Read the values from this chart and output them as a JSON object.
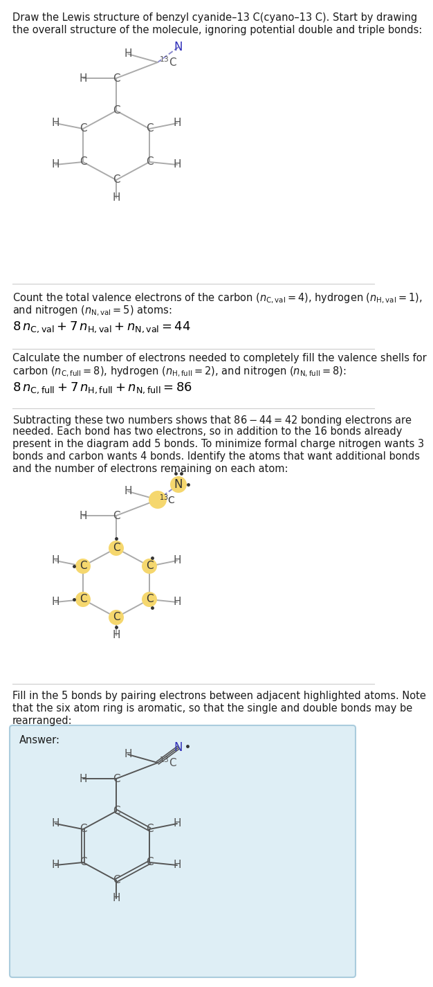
{
  "bg_color": "#ffffff",
  "answer_bg": "#deeef5",
  "answer_border": "#aaccdd",
  "atom_highlight": "#f5d76e",
  "bond_color": "#aaaaaa",
  "bond_color2": "#888888",
  "N_color": "#3333bb",
  "text_color": "#1a1a1a",
  "sep_color": "#cccccc",
  "sections": {
    "title_lines": [
      "Draw the Lewis structure of benzyl cyanide–13 C(cyano–13 C). Start by drawing",
      "the overall structure of the molecule, ignoring potential double and triple bonds:"
    ],
    "s1_lines": [
      "Count the total valence electrons of the carbon ($n_{\\mathrm{C,val}}=4$), hydrogen ($n_{\\mathrm{H,val}}=1$),",
      "and nitrogen ($n_{\\mathrm{N,val}}=5$) atoms:"
    ],
    "s1_eq": "$8\\,n_{\\mathrm{C,val}} + 7\\,n_{\\mathrm{H,val}} + n_{\\mathrm{N,val}} = 44$",
    "s2_lines": [
      "Calculate the number of electrons needed to completely fill the valence shells for",
      "carbon ($n_{\\mathrm{C,full}}=8$), hydrogen ($n_{\\mathrm{H,full}}=2$), and nitrogen ($n_{\\mathrm{N,full}}=8$):"
    ],
    "s2_eq": "$8\\,n_{\\mathrm{C,full}} + 7\\,n_{\\mathrm{H,full}} + n_{\\mathrm{N,full}} = 86$",
    "s3_lines": [
      "Subtracting these two numbers shows that $86-44=42$ bonding electrons are",
      "needed. Each bond has two electrons, so in addition to the 16 bonds already",
      "present in the diagram add 5 bonds. To minimize formal charge nitrogen wants 3",
      "bonds and carbon wants 4 bonds. Identify the atoms that want additional bonds",
      "and the number of electrons remaining on each atom:"
    ],
    "s4_lines": [
      "Fill in the 5 bonds by pairing electrons between adjacent highlighted atoms. Note",
      "that the six atom ring is aromatic, so that the single and double bonds may be",
      "rearranged:"
    ],
    "answer_label": "Answer:"
  }
}
